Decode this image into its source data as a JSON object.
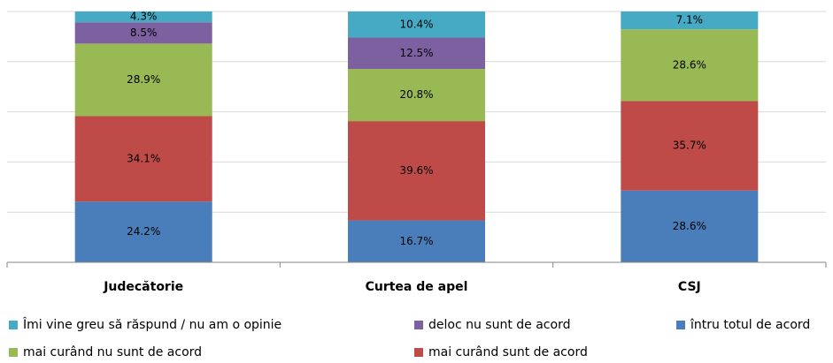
{
  "chart_data": {
    "type": "stacked_bar",
    "categories": [
      "Judecătorie",
      "Curtea de apel",
      "CSJ"
    ],
    "series": [
      {
        "name": "întru totul de acord",
        "color": "#4a7ebb",
        "values": [
          24.2,
          16.7,
          28.6
        ],
        "value_labels": [
          "24.2%",
          "16.7%",
          "28.6%"
        ]
      },
      {
        "name": "mai curând sunt de acord",
        "color": "#be4b48",
        "values": [
          34.1,
          39.6,
          35.7
        ],
        "value_labels": [
          "34.1%",
          "39.6%",
          "35.7%"
        ]
      },
      {
        "name": "mai curând nu sunt de acord",
        "color": "#98b954",
        "values": [
          28.9,
          20.8,
          28.6
        ],
        "value_labels": [
          "28.9%",
          "20.8%",
          "28.6%"
        ]
      },
      {
        "name": "deloc nu sunt de acord",
        "color": "#7d60a0",
        "values": [
          8.5,
          12.5,
          null
        ],
        "value_labels": [
          "8.5%",
          "12.5%",
          null
        ]
      },
      {
        "name": "Îmi vine greu să răspund / nu am o opinie",
        "color": "#46aac5",
        "values": [
          4.3,
          10.4,
          7.1
        ],
        "value_labels": [
          "4.3%",
          "10.4%",
          "7.1%"
        ]
      }
    ],
    "ylim": [
      0,
      100
    ],
    "yticks": [
      0,
      20,
      40,
      60,
      80,
      100
    ],
    "grid": true
  }
}
